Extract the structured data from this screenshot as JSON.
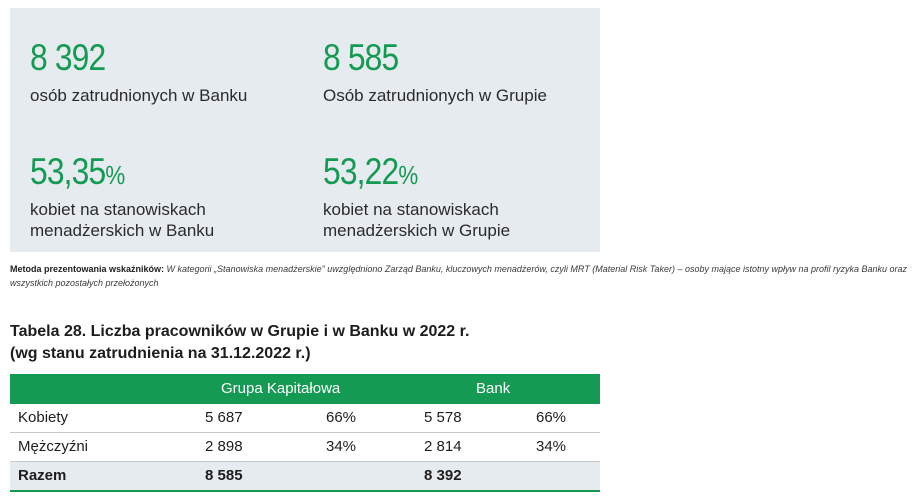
{
  "stats": [
    {
      "value": "8 392",
      "unit": "",
      "label": "osób zatrudnionych w Banku"
    },
    {
      "value": "8 585",
      "unit": "",
      "label": "Osób zatrudnionych w Grupie"
    },
    {
      "value": "53,35",
      "unit": "%",
      "label": "kobiet na stanowiskach menadżerskich w Banku"
    },
    {
      "value": "53,22",
      "unit": "%",
      "label": "kobiet na stanowiskach menadżerskich w Grupie"
    }
  ],
  "method": {
    "label": "Metoda prezentowania wskaźników:",
    "text": "W kategorii „Stanowiska menadżerskie\" uwzględniono Zarząd Banku, kluczowych menadżerów, czyli MRT (Material Risk Taker) – osoby mające istotny wpływ na profil ryzyka Banku oraz wszystkich pozostałych przełożonych"
  },
  "table": {
    "title_line1": "Tabela 28. Liczba pracowników w Grupie i w Banku w 2022 r.",
    "title_line2": "(wg stanu zatrudnienia na 31.12.2022 r.)",
    "header_group": "Grupa Kapitałowa",
    "header_bank": "Bank",
    "rows": [
      {
        "label": "Kobiety",
        "group_count": "5 687",
        "group_pct": "66%",
        "bank_count": "5 578",
        "bank_pct": "66%"
      },
      {
        "label": "Mężczyźni",
        "group_count": "2 898",
        "group_pct": "34%",
        "bank_count": "2 814",
        "bank_pct": "34%"
      },
      {
        "label": "Razem",
        "group_count": "8 585",
        "group_pct": "",
        "bank_count": "8 392",
        "bank_pct": ""
      }
    ]
  },
  "colors": {
    "accent": "#149a52",
    "panel": "#e6ebef"
  }
}
